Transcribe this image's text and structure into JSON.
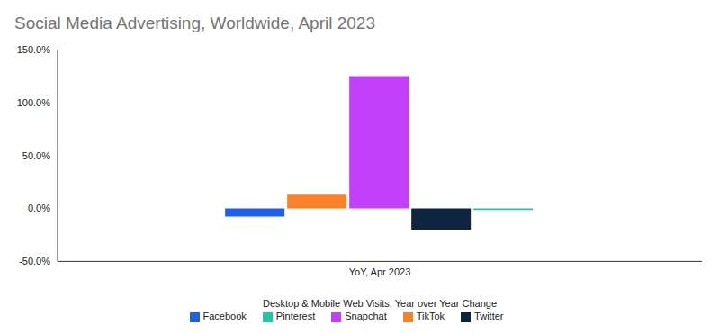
{
  "chart_data": {
    "type": "bar",
    "title": "Social Media Advertising, Worldwide, April 2023",
    "x_label": "Desktop & Mobile Web Visits, Year over Year Change",
    "categories": [
      "YoY, Apr 2023"
    ],
    "series": [
      {
        "name": "Facebook",
        "color": "#1f5ff0",
        "values": [
          -7.5
        ]
      },
      {
        "name": "TikTok",
        "color": "#fb8126",
        "values": [
          13
        ]
      },
      {
        "name": "Snapchat",
        "color": "#c240fa",
        "values": [
          125
        ]
      },
      {
        "name": "Twitter",
        "color": "#0e2540",
        "values": [
          -20
        ]
      },
      {
        "name": "Pinterest",
        "color": "#1cc9a0",
        "values": [
          -1.5
        ]
      }
    ],
    "ylim": [
      -50,
      150
    ],
    "yticks": [
      {
        "value": -50,
        "label": "-50.0%"
      },
      {
        "value": 0,
        "label": "0.0%"
      },
      {
        "value": 50,
        "label": "50.0%"
      },
      {
        "value": 100,
        "label": "100.0%"
      },
      {
        "value": 150,
        "label": "150.0%"
      }
    ],
    "grid": false,
    "legend": "bottom"
  }
}
